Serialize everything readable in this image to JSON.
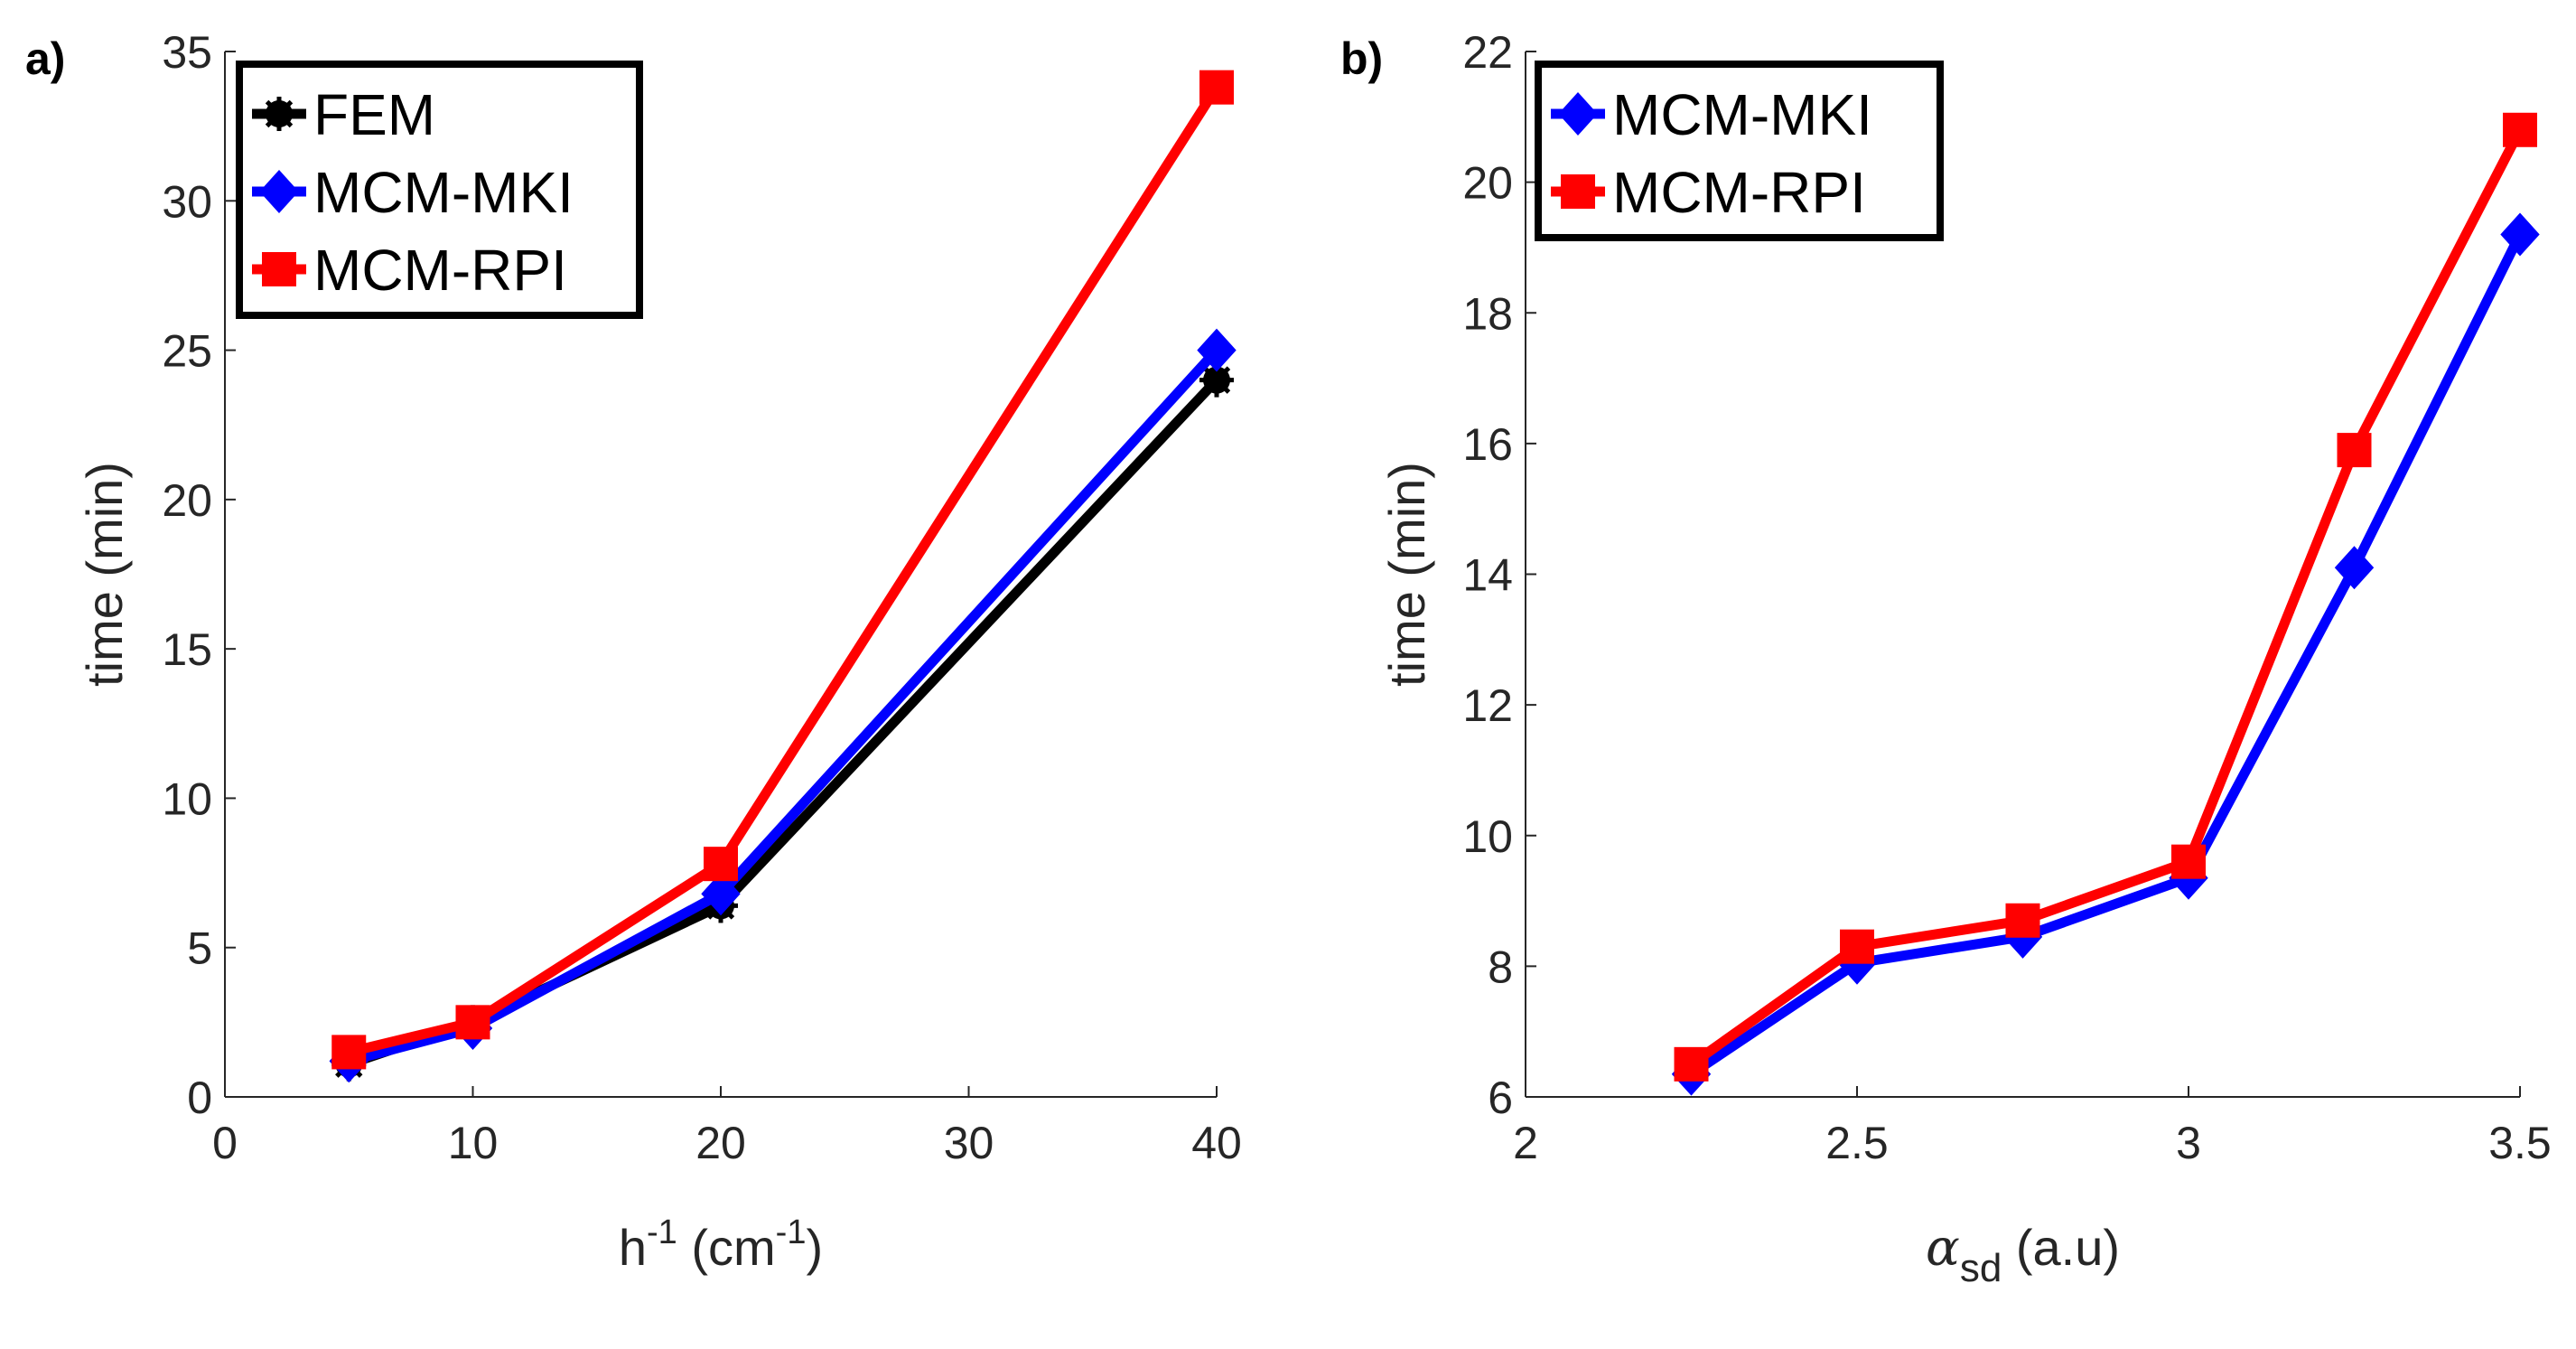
{
  "chart_data": [
    {
      "type": "line",
      "panel_label": "a)",
      "xlabel": "h",
      "xlabel_sup": "-1",
      "xlabel_unit": " (cm",
      "xlabel_unit_sup": "-1",
      "xlabel_close": ")",
      "ylabel": "time (min)",
      "xlim": [
        0,
        40
      ],
      "ylim": [
        0,
        35
      ],
      "xticks": [
        0,
        10,
        20,
        30,
        40
      ],
      "yticks": [
        0,
        5,
        10,
        15,
        20,
        25,
        30,
        35
      ],
      "legend_position": "top-left",
      "x": [
        5,
        10,
        20,
        40
      ],
      "series": [
        {
          "name": "FEM",
          "color": "#000000",
          "marker": "star",
          "values": [
            1.1,
            2.5,
            6.4,
            24.0
          ]
        },
        {
          "name": "MCM-MKI",
          "color": "#0000ff",
          "marker": "diamond",
          "values": [
            1.2,
            2.3,
            6.8,
            25.0
          ]
        },
        {
          "name": "MCM-RPI",
          "color": "#ff0000",
          "marker": "square",
          "values": [
            1.5,
            2.5,
            7.8,
            33.8
          ]
        }
      ]
    },
    {
      "type": "line",
      "panel_label": "b)",
      "xlabel": "α",
      "xlabel_sub": "sd",
      "xlabel_unit": " (a.u)",
      "ylabel": "time (min)",
      "xlim": [
        2,
        3.5
      ],
      "ylim": [
        6,
        22
      ],
      "xticks": [
        2,
        2.5,
        3,
        3.5
      ],
      "yticks": [
        6,
        8,
        10,
        12,
        14,
        16,
        18,
        20,
        22
      ],
      "legend_position": "top-left",
      "x": [
        2.25,
        2.5,
        2.75,
        3.0,
        3.25,
        3.5
      ],
      "series": [
        {
          "name": "MCM-MKI",
          "color": "#0000ff",
          "marker": "diamond",
          "values": [
            6.35,
            8.05,
            8.45,
            9.35,
            14.1,
            19.2
          ]
        },
        {
          "name": "MCM-RPI",
          "color": "#ff0000",
          "marker": "square",
          "values": [
            6.5,
            8.3,
            8.7,
            9.6,
            15.9,
            20.8
          ]
        }
      ]
    }
  ]
}
